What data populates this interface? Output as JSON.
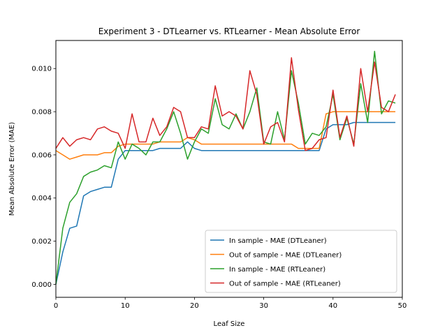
{
  "chart_data": {
    "type": "line",
    "title": "Experiment 3 - DTLearner vs. RTLearner - Mean Absolute Error",
    "xlabel": "Leaf Size",
    "ylabel": "Mean Absolute Error (MAE)",
    "xlim": [
      0,
      50
    ],
    "ylim": [
      -0.0006,
      0.0113
    ],
    "xticks": [
      0,
      10,
      20,
      30,
      40,
      50
    ],
    "yticks": [
      0.0,
      0.002,
      0.004,
      0.006,
      0.008,
      0.01
    ],
    "ytick_labels": [
      "0.000",
      "0.002",
      "0.004",
      "0.006",
      "0.008",
      "0.010"
    ],
    "grid": false,
    "legend_position": "lower-right",
    "x": [
      0,
      1,
      2,
      3,
      4,
      5,
      6,
      7,
      8,
      9,
      10,
      11,
      12,
      13,
      14,
      15,
      16,
      17,
      18,
      19,
      20,
      21,
      22,
      23,
      24,
      25,
      26,
      27,
      28,
      29,
      30,
      31,
      32,
      33,
      34,
      35,
      36,
      37,
      38,
      39,
      40,
      41,
      42,
      43,
      44,
      45,
      46,
      47,
      48,
      49
    ],
    "series": [
      {
        "name": "In sample - MAE (DTLeaner)",
        "color": "#1f77b4",
        "values": [
          0.0,
          0.0015,
          0.0026,
          0.0027,
          0.0041,
          0.0043,
          0.0044,
          0.0045,
          0.0045,
          0.0058,
          0.0062,
          0.0062,
          0.0062,
          0.0062,
          0.0062,
          0.0063,
          0.0063,
          0.0063,
          0.0063,
          0.0066,
          0.0063,
          0.0062,
          0.0062,
          0.0062,
          0.0062,
          0.0062,
          0.0062,
          0.0062,
          0.0062,
          0.0062,
          0.0062,
          0.0062,
          0.0062,
          0.0062,
          0.0062,
          0.0062,
          0.0062,
          0.0062,
          0.0062,
          0.0072,
          0.0074,
          0.0074,
          0.0074,
          0.0075,
          0.0075,
          0.0075,
          0.0075,
          0.0075,
          0.0075,
          0.0075
        ]
      },
      {
        "name": "Out of sample - MAE (DTLeaner)",
        "color": "#ff7f0e",
        "values": [
          0.0062,
          0.006,
          0.0058,
          0.0059,
          0.006,
          0.006,
          0.006,
          0.0061,
          0.0061,
          0.0064,
          0.0065,
          0.0065,
          0.0065,
          0.0065,
          0.0065,
          0.0066,
          0.0066,
          0.0066,
          0.0066,
          0.0068,
          0.0067,
          0.0065,
          0.0065,
          0.0065,
          0.0065,
          0.0065,
          0.0065,
          0.0065,
          0.0065,
          0.0065,
          0.0065,
          0.0065,
          0.0065,
          0.0065,
          0.0065,
          0.0063,
          0.0063,
          0.0063,
          0.0063,
          0.0079,
          0.008,
          0.008,
          0.008,
          0.008,
          0.008,
          0.008,
          0.008,
          0.008,
          0.008,
          0.008
        ]
      },
      {
        "name": "In sample - MAE (RTLeaner)",
        "color": "#2ca02c",
        "values": [
          0.0,
          0.0026,
          0.0038,
          0.0042,
          0.005,
          0.0052,
          0.0053,
          0.0055,
          0.0054,
          0.0066,
          0.0058,
          0.0065,
          0.0063,
          0.006,
          0.0066,
          0.0066,
          0.0072,
          0.008,
          0.007,
          0.0058,
          0.0066,
          0.0072,
          0.007,
          0.0086,
          0.0074,
          0.0072,
          0.0079,
          0.0072,
          0.008,
          0.0091,
          0.0066,
          0.0065,
          0.008,
          0.0067,
          0.0099,
          0.0084,
          0.0065,
          0.007,
          0.0069,
          0.0073,
          0.0088,
          0.0067,
          0.0077,
          0.0065,
          0.0093,
          0.0075,
          0.0108,
          0.0079,
          0.0085,
          0.0084
        ]
      },
      {
        "name": "Out of sample - MAE (RTLeaner)",
        "color": "#d62728",
        "values": [
          0.0063,
          0.0068,
          0.0064,
          0.0067,
          0.0068,
          0.0067,
          0.0072,
          0.0073,
          0.0071,
          0.007,
          0.0063,
          0.0079,
          0.0066,
          0.0066,
          0.0077,
          0.0069,
          0.0073,
          0.0082,
          0.008,
          0.0068,
          0.0068,
          0.0073,
          0.0072,
          0.0092,
          0.0078,
          0.008,
          0.0078,
          0.0072,
          0.0099,
          0.0088,
          0.0065,
          0.0073,
          0.0075,
          0.0066,
          0.0105,
          0.0081,
          0.0062,
          0.0063,
          0.0067,
          0.0068,
          0.009,
          0.0068,
          0.0078,
          0.0064,
          0.01,
          0.008,
          0.0103,
          0.0082,
          0.008,
          0.0088
        ]
      }
    ]
  }
}
